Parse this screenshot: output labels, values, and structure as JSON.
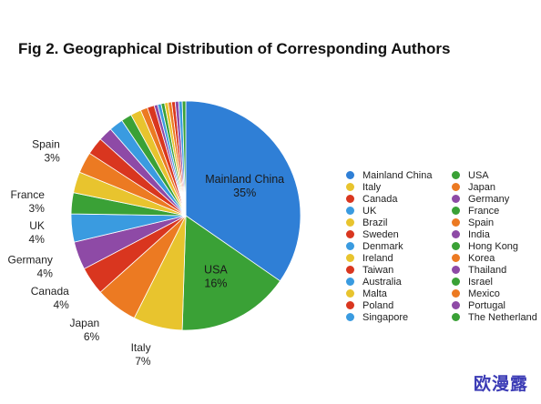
{
  "chart_data": {
    "type": "pie",
    "title": "Fig 2. Geographical Distribution of Corresponding Authors",
    "slices": [
      {
        "name": "Mainland China",
        "value": 35,
        "color": "#2f7fd6",
        "label": "Mainland China",
        "pct": "35%"
      },
      {
        "name": "USA",
        "value": 16,
        "color": "#3aa136",
        "label": "USA",
        "pct": "16%"
      },
      {
        "name": "Italy",
        "value": 7,
        "color": "#e8c42e",
        "label": "Italy",
        "pct": "7%"
      },
      {
        "name": "Japan",
        "value": 6,
        "color": "#ec7a22",
        "label": "Japan",
        "pct": "6%"
      },
      {
        "name": "Canada",
        "value": 4,
        "color": "#d9361f",
        "label": "Canada",
        "pct": "4%"
      },
      {
        "name": "Germany",
        "value": 4,
        "color": "#8e4aa6",
        "label": "Germany",
        "pct": "4%"
      },
      {
        "name": "UK",
        "value": 4,
        "color": "#3a9be0",
        "label": "UK",
        "pct": "4%"
      },
      {
        "name": "France",
        "value": 3,
        "color": "#3aa136",
        "label": "France",
        "pct": "3%"
      },
      {
        "name": "Brazil",
        "value": 3,
        "color": "#e8c42e",
        "label": "",
        "pct": ""
      },
      {
        "name": "Spain",
        "value": 3,
        "color": "#ec7a22",
        "label": "Spain",
        "pct": "3%"
      },
      {
        "name": "Sweden",
        "value": 2.5,
        "color": "#d9361f",
        "label": "",
        "pct": ""
      },
      {
        "name": "India",
        "value": 2,
        "color": "#8e4aa6",
        "label": "",
        "pct": ""
      },
      {
        "name": "Denmark",
        "value": 2,
        "color": "#3a9be0",
        "label": "",
        "pct": ""
      },
      {
        "name": "Hong Kong",
        "value": 1.5,
        "color": "#3aa136",
        "label": "",
        "pct": ""
      },
      {
        "name": "Ireland",
        "value": 1.5,
        "color": "#e8c42e",
        "label": "",
        "pct": ""
      },
      {
        "name": "Korea",
        "value": 1,
        "color": "#ec7a22",
        "label": "",
        "pct": ""
      },
      {
        "name": "Taiwan",
        "value": 1,
        "color": "#d9361f",
        "label": "",
        "pct": ""
      },
      {
        "name": "Thailand",
        "value": 0.5,
        "color": "#8e4aa6",
        "label": "",
        "pct": ""
      },
      {
        "name": "Australia",
        "value": 0.5,
        "color": "#3a9be0",
        "label": "",
        "pct": ""
      },
      {
        "name": "Israel",
        "value": 0.5,
        "color": "#3aa136",
        "label": "",
        "pct": ""
      },
      {
        "name": "Malta",
        "value": 0.5,
        "color": "#e8c42e",
        "label": "",
        "pct": ""
      },
      {
        "name": "Mexico",
        "value": 0.5,
        "color": "#ec7a22",
        "label": "",
        "pct": ""
      },
      {
        "name": "Poland",
        "value": 0.5,
        "color": "#d9361f",
        "label": "",
        "pct": ""
      },
      {
        "name": "Portugal",
        "value": 0.5,
        "color": "#8e4aa6",
        "label": "",
        "pct": ""
      },
      {
        "name": "Singapore",
        "value": 0.5,
        "color": "#3a9be0",
        "label": "",
        "pct": ""
      },
      {
        "name": "The Netherland",
        "value": 0.5,
        "color": "#3aa136",
        "label": "",
        "pct": ""
      }
    ],
    "legend": [
      {
        "name": "Mainland China",
        "color": "#2f7fd6"
      },
      {
        "name": "USA",
        "color": "#3aa136"
      },
      {
        "name": "Italy",
        "color": "#e8c42e"
      },
      {
        "name": "Japan",
        "color": "#ec7a22"
      },
      {
        "name": "Canada",
        "color": "#d9361f"
      },
      {
        "name": "Germany",
        "color": "#8e4aa6"
      },
      {
        "name": "UK",
        "color": "#3a9be0"
      },
      {
        "name": "France",
        "color": "#3aa136"
      },
      {
        "name": "Brazil",
        "color": "#e8c42e"
      },
      {
        "name": "Spain",
        "color": "#ec7a22"
      },
      {
        "name": "Sweden",
        "color": "#d9361f"
      },
      {
        "name": "India",
        "color": "#8e4aa6"
      },
      {
        "name": "Denmark",
        "color": "#3a9be0"
      },
      {
        "name": "Hong Kong",
        "color": "#3aa136"
      },
      {
        "name": "Ireland",
        "color": "#e8c42e"
      },
      {
        "name": "Korea",
        "color": "#ec7a22"
      },
      {
        "name": "Taiwan",
        "color": "#d9361f"
      },
      {
        "name": "Thailand",
        "color": "#8e4aa6"
      },
      {
        "name": "Australia",
        "color": "#3a9be0"
      },
      {
        "name": "Israel",
        "color": "#3aa136"
      },
      {
        "name": "Malta",
        "color": "#e8c42e"
      },
      {
        "name": "Mexico",
        "color": "#ec7a22"
      },
      {
        "name": "Poland",
        "color": "#d9361f"
      },
      {
        "name": "Portugal",
        "color": "#8e4aa6"
      },
      {
        "name": "Singapore",
        "color": "#3a9be0"
      },
      {
        "name": "The Netherland",
        "color": "#3aa136"
      }
    ],
    "legend_placement": "right"
  },
  "watermark": "欧漫露"
}
